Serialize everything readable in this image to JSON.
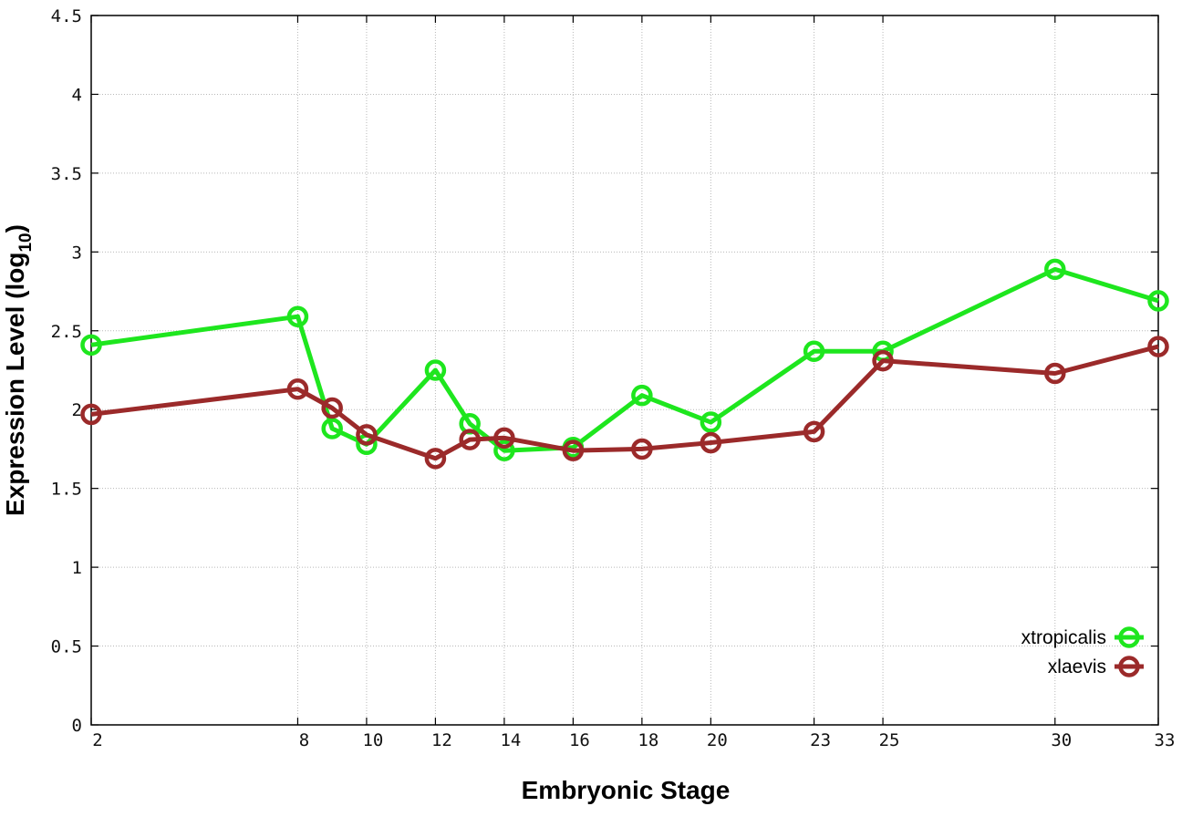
{
  "chart_data": {
    "type": "line",
    "xlabel": "Embryonic Stage",
    "ylabel": {
      "main": "Expression Level (log",
      "sub": "10",
      "close": ")"
    },
    "x": [
      2,
      8,
      9,
      10,
      12,
      13,
      14,
      16,
      18,
      20,
      23,
      25,
      30,
      33
    ],
    "xticks": [
      "2",
      "8",
      "10",
      "12",
      "14",
      "16",
      "18",
      "20",
      "23",
      "25",
      "30",
      "33"
    ],
    "yticks": [
      "0",
      "0.5",
      "1",
      "1.5",
      "2",
      "2.5",
      "3",
      "3.5",
      "4",
      "4.5"
    ],
    "xlim": [
      2,
      33
    ],
    "ylim": [
      0,
      4.5
    ],
    "grid": true,
    "legend_position": "bottom-right",
    "series": [
      {
        "name": "xtropicalis",
        "color": "#1ee61e",
        "values": [
          2.41,
          2.59,
          1.88,
          1.78,
          2.25,
          1.91,
          1.74,
          1.76,
          2.09,
          1.92,
          2.37,
          2.37,
          2.89,
          2.69
        ]
      },
      {
        "name": "xlaevis",
        "color": "#9b2a2a",
        "values": [
          1.97,
          2.13,
          2.01,
          1.84,
          1.69,
          1.81,
          1.82,
          1.74,
          1.75,
          1.79,
          1.86,
          2.31,
          2.23,
          2.4
        ]
      }
    ]
  }
}
